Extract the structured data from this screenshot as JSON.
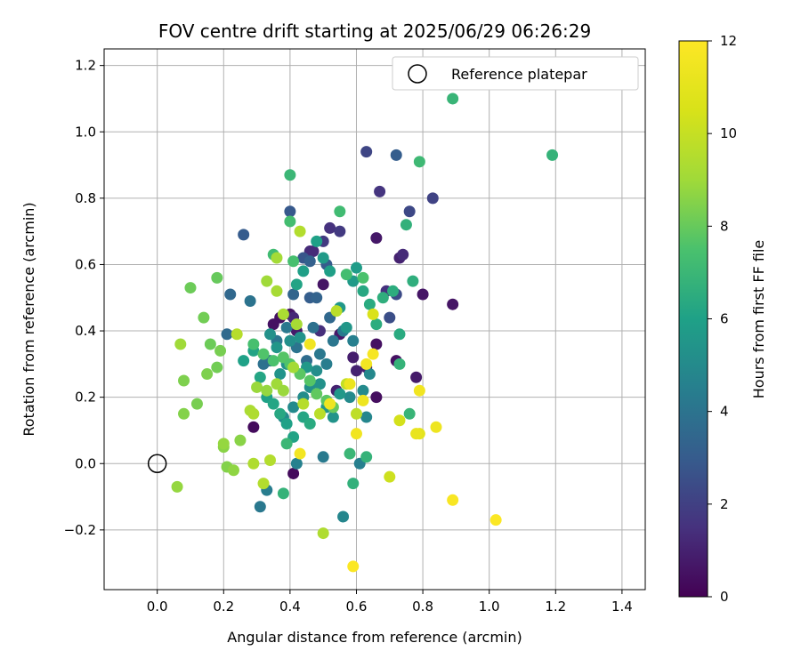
{
  "chart_data": {
    "type": "scatter",
    "title": "FOV centre drift starting at 2025/06/29 06:26:29",
    "xlabel": "Angular distance from reference (arcmin)",
    "ylabel": "Rotation from reference (arcmin)",
    "xlim": [
      -0.16,
      1.47
    ],
    "ylim": [
      -0.38,
      1.25
    ],
    "xticks": [
      "0.0",
      "0.2",
      "0.4",
      "0.6",
      "0.8",
      "1.0",
      "1.2",
      "1.4"
    ],
    "xtick_values": [
      0.0,
      0.2,
      0.4,
      0.6,
      0.8,
      1.0,
      1.2,
      1.4
    ],
    "yticks": [
      "−0.2",
      "0.0",
      "0.2",
      "0.4",
      "0.6",
      "0.8",
      "1.0",
      "1.2"
    ],
    "ytick_values": [
      -0.2,
      0.0,
      0.2,
      0.4,
      0.6,
      0.8,
      1.0,
      1.2
    ],
    "grid": true,
    "legend": {
      "label": "Reference platepar",
      "position": "top-right"
    },
    "reference_point": {
      "x": 0.0,
      "y": 0.0
    },
    "colorbar": {
      "label": "Hours from first FF file",
      "range": [
        0,
        12
      ],
      "ticks": [
        "0",
        "2",
        "4",
        "6",
        "8",
        "10",
        "12"
      ],
      "tick_values": [
        0,
        2,
        4,
        6,
        8,
        10,
        12
      ],
      "colormap": "viridis"
    },
    "points": [
      {
        "x": 0.29,
        "y": 0.11,
        "h": 0.3
      },
      {
        "x": 0.41,
        "y": -0.03,
        "h": 0.3
      },
      {
        "x": 0.37,
        "y": 0.44,
        "h": 0.5
      },
      {
        "x": 0.4,
        "y": 0.45,
        "h": 0.6
      },
      {
        "x": 0.35,
        "y": 0.42,
        "h": 0.5
      },
      {
        "x": 0.42,
        "y": 0.4,
        "h": 0.8
      },
      {
        "x": 0.5,
        "y": 0.54,
        "h": 0.6
      },
      {
        "x": 0.55,
        "y": 0.39,
        "h": 0.7
      },
      {
        "x": 0.66,
        "y": 0.36,
        "h": 0.5
      },
      {
        "x": 0.66,
        "y": 0.2,
        "h": 0.4
      },
      {
        "x": 0.72,
        "y": 0.31,
        "h": 0.5
      },
      {
        "x": 0.78,
        "y": 0.26,
        "h": 0.8
      },
      {
        "x": 0.8,
        "y": 0.51,
        "h": 0.6
      },
      {
        "x": 0.89,
        "y": 0.48,
        "h": 0.6
      },
      {
        "x": 0.66,
        "y": 0.68,
        "h": 0.7
      },
      {
        "x": 0.73,
        "y": 0.62,
        "h": 1.0
      },
      {
        "x": 0.54,
        "y": 0.22,
        "h": 1.0
      },
      {
        "x": 0.59,
        "y": 0.32,
        "h": 0.9
      },
      {
        "x": 0.6,
        "y": 0.28,
        "h": 1.0
      },
      {
        "x": 0.63,
        "y": 0.29,
        "h": 1.0
      },
      {
        "x": 0.46,
        "y": 0.64,
        "h": 1.3
      },
      {
        "x": 0.74,
        "y": 0.63,
        "h": 1.3
      },
      {
        "x": 0.69,
        "y": 0.52,
        "h": 1.5
      },
      {
        "x": 0.67,
        "y": 0.82,
        "h": 1.6
      },
      {
        "x": 0.49,
        "y": 0.4,
        "h": 1.4
      },
      {
        "x": 0.41,
        "y": 0.44,
        "h": 1.2
      },
      {
        "x": 0.47,
        "y": 0.64,
        "h": 1.3
      },
      {
        "x": 0.52,
        "y": 0.71,
        "h": 1.5
      },
      {
        "x": 0.55,
        "y": 0.7,
        "h": 1.8
      },
      {
        "x": 0.5,
        "y": 0.67,
        "h": 1.8
      },
      {
        "x": 0.63,
        "y": 0.94,
        "h": 2.2
      },
      {
        "x": 0.83,
        "y": 0.8,
        "h": 2.1
      },
      {
        "x": 0.76,
        "y": 0.76,
        "h": 2.3
      },
      {
        "x": 0.7,
        "y": 0.44,
        "h": 2.5
      },
      {
        "x": 0.72,
        "y": 0.51,
        "h": 2.4
      },
      {
        "x": 0.4,
        "y": 0.76,
        "h": 2.9
      },
      {
        "x": 0.26,
        "y": 0.69,
        "h": 3.0
      },
      {
        "x": 0.72,
        "y": 0.93,
        "h": 3.1
      },
      {
        "x": 0.44,
        "y": 0.62,
        "h": 2.8
      },
      {
        "x": 0.46,
        "y": 0.61,
        "h": 3.2
      },
      {
        "x": 0.51,
        "y": 0.6,
        "h": 3.0
      },
      {
        "x": 0.41,
        "y": 0.51,
        "h": 3.4
      },
      {
        "x": 0.46,
        "y": 0.5,
        "h": 3.1
      },
      {
        "x": 0.48,
        "y": 0.5,
        "h": 3.3
      },
      {
        "x": 0.52,
        "y": 0.44,
        "h": 3.5
      },
      {
        "x": 0.21,
        "y": 0.39,
        "h": 3.6
      },
      {
        "x": 0.22,
        "y": 0.51,
        "h": 3.5
      },
      {
        "x": 0.28,
        "y": 0.49,
        "h": 4.0
      },
      {
        "x": 0.32,
        "y": 0.3,
        "h": 3.9
      },
      {
        "x": 0.34,
        "y": 0.31,
        "h": 3.8
      },
      {
        "x": 0.36,
        "y": 0.37,
        "h": 4.1
      },
      {
        "x": 0.39,
        "y": 0.41,
        "h": 4.2
      },
      {
        "x": 0.42,
        "y": 0.35,
        "h": 4.0
      },
      {
        "x": 0.45,
        "y": 0.31,
        "h": 3.7
      },
      {
        "x": 0.47,
        "y": 0.41,
        "h": 3.9
      },
      {
        "x": 0.49,
        "y": 0.33,
        "h": 4.2
      },
      {
        "x": 0.51,
        "y": 0.3,
        "h": 4.4
      },
      {
        "x": 0.53,
        "y": 0.37,
        "h": 4.1
      },
      {
        "x": 0.56,
        "y": 0.4,
        "h": 4.3
      },
      {
        "x": 0.59,
        "y": 0.37,
        "h": 4.5
      },
      {
        "x": 0.31,
        "y": -0.13,
        "h": 4.2
      },
      {
        "x": 0.33,
        "y": -0.08,
        "h": 4.4
      },
      {
        "x": 0.42,
        "y": 0.0,
        "h": 4.6
      },
      {
        "x": 0.5,
        "y": 0.02,
        "h": 4.3
      },
      {
        "x": 0.56,
        "y": -0.16,
        "h": 4.8
      },
      {
        "x": 0.61,
        "y": 0.0,
        "h": 4.5
      },
      {
        "x": 0.63,
        "y": 0.14,
        "h": 4.8
      },
      {
        "x": 0.64,
        "y": 0.27,
        "h": 4.9
      },
      {
        "x": 0.62,
        "y": 0.22,
        "h": 5.0
      },
      {
        "x": 0.58,
        "y": 0.2,
        "h": 5.0
      },
      {
        "x": 0.38,
        "y": 0.14,
        "h": 5.0
      },
      {
        "x": 0.41,
        "y": 0.17,
        "h": 5.0
      },
      {
        "x": 0.44,
        "y": 0.2,
        "h": 5.1
      },
      {
        "x": 0.46,
        "y": 0.23,
        "h": 5.2
      },
      {
        "x": 0.48,
        "y": 0.28,
        "h": 5.1
      },
      {
        "x": 0.39,
        "y": 0.3,
        "h": 5.3
      },
      {
        "x": 0.37,
        "y": 0.27,
        "h": 5.4
      },
      {
        "x": 0.34,
        "y": 0.39,
        "h": 5.3
      },
      {
        "x": 0.36,
        "y": 0.35,
        "h": 5.5
      },
      {
        "x": 0.4,
        "y": 0.37,
        "h": 5.2
      },
      {
        "x": 0.43,
        "y": 0.38,
        "h": 5.4
      },
      {
        "x": 0.45,
        "y": 0.29,
        "h": 5.6
      },
      {
        "x": 0.49,
        "y": 0.24,
        "h": 5.3
      },
      {
        "x": 0.51,
        "y": 0.17,
        "h": 5.5
      },
      {
        "x": 0.53,
        "y": 0.14,
        "h": 5.4
      },
      {
        "x": 0.55,
        "y": 0.21,
        "h": 5.6
      },
      {
        "x": 0.57,
        "y": 0.41,
        "h": 5.5
      },
      {
        "x": 0.59,
        "y": 0.55,
        "h": 5.7
      },
      {
        "x": 0.6,
        "y": 0.59,
        "h": 5.8
      },
      {
        "x": 0.55,
        "y": 0.47,
        "h": 5.6
      },
      {
        "x": 0.52,
        "y": 0.58,
        "h": 5.9
      },
      {
        "x": 0.5,
        "y": 0.62,
        "h": 5.7
      },
      {
        "x": 0.48,
        "y": 0.67,
        "h": 6.0
      },
      {
        "x": 0.44,
        "y": 0.58,
        "h": 5.9
      },
      {
        "x": 0.42,
        "y": 0.54,
        "h": 6.1
      },
      {
        "x": 0.26,
        "y": 0.31,
        "h": 6.0
      },
      {
        "x": 0.29,
        "y": 0.34,
        "h": 6.1
      },
      {
        "x": 0.31,
        "y": 0.26,
        "h": 6.2
      },
      {
        "x": 0.33,
        "y": 0.2,
        "h": 6.0
      },
      {
        "x": 0.35,
        "y": 0.18,
        "h": 6.2
      },
      {
        "x": 0.37,
        "y": 0.15,
        "h": 6.3
      },
      {
        "x": 0.39,
        "y": 0.12,
        "h": 6.0
      },
      {
        "x": 0.41,
        "y": 0.08,
        "h": 6.1
      },
      {
        "x": 0.44,
        "y": 0.14,
        "h": 6.2
      },
      {
        "x": 0.46,
        "y": 0.12,
        "h": 6.4
      },
      {
        "x": 0.62,
        "y": 0.52,
        "h": 6.3
      },
      {
        "x": 0.64,
        "y": 0.48,
        "h": 6.4
      },
      {
        "x": 0.66,
        "y": 0.42,
        "h": 6.5
      },
      {
        "x": 0.68,
        "y": 0.5,
        "h": 6.6
      },
      {
        "x": 0.71,
        "y": 0.52,
        "h": 6.5
      },
      {
        "x": 0.73,
        "y": 0.39,
        "h": 6.4
      },
      {
        "x": 0.75,
        "y": 0.72,
        "h": 6.7
      },
      {
        "x": 0.77,
        "y": 0.55,
        "h": 6.6
      },
      {
        "x": 0.73,
        "y": 0.3,
        "h": 6.8
      },
      {
        "x": 0.76,
        "y": 0.15,
        "h": 6.9
      },
      {
        "x": 0.63,
        "y": 0.02,
        "h": 6.8
      },
      {
        "x": 0.58,
        "y": 0.03,
        "h": 7.0
      },
      {
        "x": 0.59,
        "y": -0.06,
        "h": 6.7
      },
      {
        "x": 0.38,
        "y": -0.09,
        "h": 6.8
      },
      {
        "x": 0.39,
        "y": 0.06,
        "h": 7.0
      },
      {
        "x": 0.89,
        "y": 1.1,
        "h": 6.9
      },
      {
        "x": 1.19,
        "y": 0.93,
        "h": 6.8
      },
      {
        "x": 0.79,
        "y": 0.91,
        "h": 7.1
      },
      {
        "x": 0.4,
        "y": 0.87,
        "h": 7.0
      },
      {
        "x": 0.55,
        "y": 0.76,
        "h": 7.2
      },
      {
        "x": 0.4,
        "y": 0.73,
        "h": 7.3
      },
      {
        "x": 0.35,
        "y": 0.63,
        "h": 7.2
      },
      {
        "x": 0.41,
        "y": 0.61,
        "h": 7.4
      },
      {
        "x": 0.57,
        "y": 0.57,
        "h": 7.3
      },
      {
        "x": 0.62,
        "y": 0.56,
        "h": 7.5
      },
      {
        "x": 0.29,
        "y": 0.36,
        "h": 7.4
      },
      {
        "x": 0.32,
        "y": 0.33,
        "h": 7.6
      },
      {
        "x": 0.35,
        "y": 0.31,
        "h": 7.5
      },
      {
        "x": 0.38,
        "y": 0.32,
        "h": 7.7
      },
      {
        "x": 0.4,
        "y": 0.3,
        "h": 7.6
      },
      {
        "x": 0.43,
        "y": 0.27,
        "h": 7.8
      },
      {
        "x": 0.46,
        "y": 0.25,
        "h": 7.7
      },
      {
        "x": 0.48,
        "y": 0.21,
        "h": 7.9
      },
      {
        "x": 0.51,
        "y": 0.19,
        "h": 7.8
      },
      {
        "x": 0.53,
        "y": 0.17,
        "h": 8.0
      },
      {
        "x": 0.18,
        "y": 0.56,
        "h": 8.0
      },
      {
        "x": 0.1,
        "y": 0.53,
        "h": 8.1
      },
      {
        "x": 0.14,
        "y": 0.44,
        "h": 8.2
      },
      {
        "x": 0.16,
        "y": 0.36,
        "h": 8.1
      },
      {
        "x": 0.19,
        "y": 0.34,
        "h": 8.3
      },
      {
        "x": 0.18,
        "y": 0.29,
        "h": 8.2
      },
      {
        "x": 0.15,
        "y": 0.27,
        "h": 8.4
      },
      {
        "x": 0.12,
        "y": 0.18,
        "h": 8.3
      },
      {
        "x": 0.08,
        "y": 0.15,
        "h": 8.5
      },
      {
        "x": 0.08,
        "y": 0.25,
        "h": 8.4
      },
      {
        "x": 0.2,
        "y": 0.05,
        "h": 8.6
      },
      {
        "x": 0.21,
        "y": -0.01,
        "h": 8.5
      },
      {
        "x": 0.23,
        "y": -0.02,
        "h": 8.7
      },
      {
        "x": 0.2,
        "y": 0.06,
        "h": 8.8
      },
      {
        "x": 0.25,
        "y": 0.07,
        "h": 8.6
      },
      {
        "x": 0.3,
        "y": 0.23,
        "h": 8.9
      },
      {
        "x": 0.33,
        "y": 0.22,
        "h": 8.8
      },
      {
        "x": 0.36,
        "y": 0.24,
        "h": 9.0
      },
      {
        "x": 0.38,
        "y": 0.22,
        "h": 8.9
      },
      {
        "x": 0.41,
        "y": 0.29,
        "h": 9.1
      },
      {
        "x": 0.33,
        "y": 0.55,
        "h": 9.0
      },
      {
        "x": 0.36,
        "y": 0.52,
        "h": 9.2
      },
      {
        "x": 0.36,
        "y": 0.62,
        "h": 9.1
      },
      {
        "x": 0.38,
        "y": 0.45,
        "h": 9.3
      },
      {
        "x": 0.42,
        "y": 0.42,
        "h": 9.2
      },
      {
        "x": 0.28,
        "y": 0.16,
        "h": 9.3
      },
      {
        "x": 0.29,
        "y": 0.15,
        "h": 9.4
      },
      {
        "x": 0.29,
        "y": 0.0,
        "h": 9.4
      },
      {
        "x": 0.32,
        "y": -0.06,
        "h": 9.5
      },
      {
        "x": 0.34,
        "y": 0.01,
        "h": 9.5
      },
      {
        "x": 0.07,
        "y": 0.36,
        "h": 9.0
      },
      {
        "x": 0.06,
        "y": -0.07,
        "h": 8.8
      },
      {
        "x": 0.24,
        "y": 0.39,
        "h": 9.6
      },
      {
        "x": 0.43,
        "y": 0.7,
        "h": 9.5
      },
      {
        "x": 0.5,
        "y": -0.21,
        "h": 9.4
      },
      {
        "x": 0.44,
        "y": 0.18,
        "h": 9.6
      },
      {
        "x": 0.49,
        "y": 0.15,
        "h": 9.7
      },
      {
        "x": 0.6,
        "y": 0.15,
        "h": 9.8
      },
      {
        "x": 0.54,
        "y": 0.46,
        "h": 9.7
      },
      {
        "x": 0.57,
        "y": 0.24,
        "h": 9.9
      },
      {
        "x": 0.7,
        "y": -0.04,
        "h": 10.2
      },
      {
        "x": 0.73,
        "y": 0.13,
        "h": 10.4
      },
      {
        "x": 0.65,
        "y": 0.45,
        "h": 10.6
      },
      {
        "x": 0.79,
        "y": 0.09,
        "h": 11.0
      },
      {
        "x": 0.78,
        "y": 0.09,
        "h": 11.2
      },
      {
        "x": 0.46,
        "y": 0.36,
        "h": 11.5
      },
      {
        "x": 0.43,
        "y": 0.03,
        "h": 11.6
      },
      {
        "x": 0.52,
        "y": 0.18,
        "h": 11.4
      },
      {
        "x": 0.58,
        "y": 0.24,
        "h": 11.3
      },
      {
        "x": 0.6,
        "y": 0.09,
        "h": 11.5
      },
      {
        "x": 0.62,
        "y": 0.19,
        "h": 11.4
      },
      {
        "x": 0.63,
        "y": 0.3,
        "h": 11.6
      },
      {
        "x": 0.65,
        "y": 0.33,
        "h": 11.7
      },
      {
        "x": 0.79,
        "y": 0.22,
        "h": 11.5
      },
      {
        "x": 0.84,
        "y": 0.11,
        "h": 11.4
      },
      {
        "x": 0.89,
        "y": -0.11,
        "h": 11.8
      },
      {
        "x": 1.02,
        "y": -0.17,
        "h": 11.9
      },
      {
        "x": 0.59,
        "y": -0.31,
        "h": 11.9
      }
    ]
  }
}
